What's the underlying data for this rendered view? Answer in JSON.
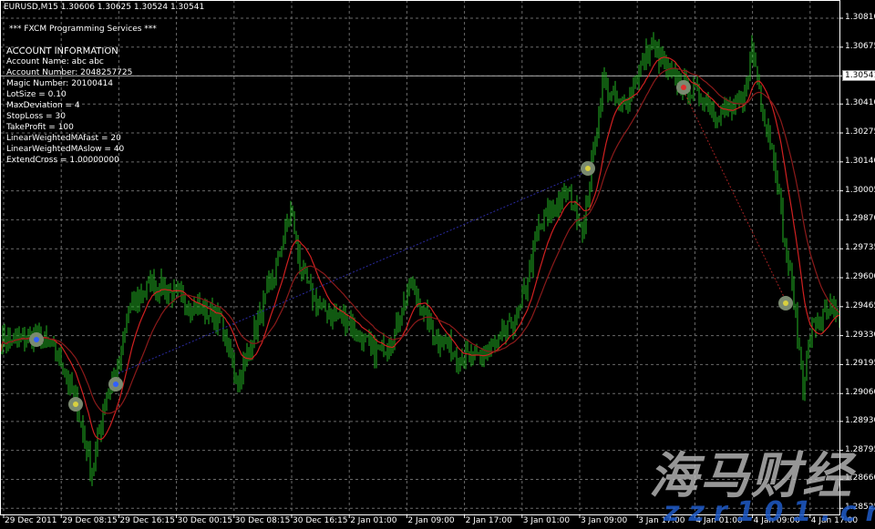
{
  "header": {
    "symbol": "EURUSD,M15",
    "quote": "1.30606 1.30625 1.30524 1.30541"
  },
  "info": {
    "title": "*** FXCM Programming Services ***",
    "lines": [
      "ACCOUNT INFORMATION",
      "Account Name: abc abc",
      "Account Number: 2048257725",
      " Magic Number: 20100414",
      " LotSize = 0.10",
      " MaxDeviation = 4",
      " StopLoss = 30",
      " TakeProfit = 100",
      " LinearWeightedMAfast = 20",
      " LinearWeightedMAslow = 40",
      " ExtendCross = 1.00000000"
    ]
  },
  "price_axis": [
    "1.30810",
    "1.30675",
    "1.30541",
    "1.30410",
    "1.30275",
    "1.30140",
    "1.30005",
    "1.29870",
    "1.29735",
    "1.29600",
    "1.29465",
    "1.29330",
    "1.29195",
    "1.29060",
    "1.28930",
    "1.28795",
    "1.28660",
    "1.28525"
  ],
  "current_price": "1.30541",
  "time_axis": [
    "29 Dec 2011",
    "29 Dec 08:15",
    "29 Dec 16:15",
    "30 Dec 00:15",
    "30 Dec 08:15",
    "30 Dec 16:15",
    "2 Jan 01:00",
    "2 Jan 09:00",
    "2 Jan 17:00",
    "3 Jan 01:00",
    "3 Jan 09:00",
    "3 Jan 17:00",
    "4 Jan 01:00",
    "4 Jan 09:00",
    "4 Jan 17:00"
  ],
  "colors": {
    "bars": "#22b222",
    "ma_fast": "#d02020",
    "ma_slow": "#8b1a1a",
    "grid": "#6a6a6a",
    "trend": "#2a2aa0"
  },
  "price_path": [
    [
      0,
      1.29303
    ],
    [
      20,
      1.29324
    ],
    [
      32,
      1.29239
    ],
    [
      42,
      1.28985
    ],
    [
      50,
      1.28688
    ],
    [
      57,
      1.29027
    ],
    [
      65,
      1.29197
    ],
    [
      70,
      1.29452
    ],
    [
      82,
      1.29579
    ],
    [
      100,
      1.29494
    ],
    [
      120,
      1.29409
    ],
    [
      130,
      1.29112
    ],
    [
      140,
      1.29367
    ],
    [
      150,
      1.29621
    ],
    [
      159,
      1.29919
    ],
    [
      165,
      1.29621
    ],
    [
      175,
      1.29452
    ],
    [
      190,
      1.29409
    ],
    [
      205,
      1.29239
    ],
    [
      215,
      1.29324
    ],
    [
      225,
      1.29579
    ],
    [
      235,
      1.29367
    ],
    [
      250,
      1.29239
    ],
    [
      260,
      1.29218
    ],
    [
      272,
      1.29282
    ],
    [
      285,
      1.29452
    ],
    [
      295,
      1.29834
    ],
    [
      310,
      1.30003
    ],
    [
      320,
      1.29834
    ],
    [
      330,
      1.30513
    ],
    [
      340,
      1.30386
    ],
    [
      357,
      1.30683
    ],
    [
      370,
      1.30513
    ],
    [
      380,
      1.3047
    ],
    [
      395,
      1.30364
    ],
    [
      407,
      1.30407
    ],
    [
      412,
      1.30683
    ],
    [
      417,
      1.30428
    ],
    [
      425,
      1.30131
    ],
    [
      430,
      1.29749
    ],
    [
      435,
      1.29494
    ],
    [
      440,
      1.29112
    ],
    [
      445,
      1.29367
    ],
    [
      455,
      1.29452
    ],
    [
      460,
      1.29388
    ]
  ],
  "watermark": {
    "cn": "海马财经",
    "url": "zzr101.cn"
  }
}
